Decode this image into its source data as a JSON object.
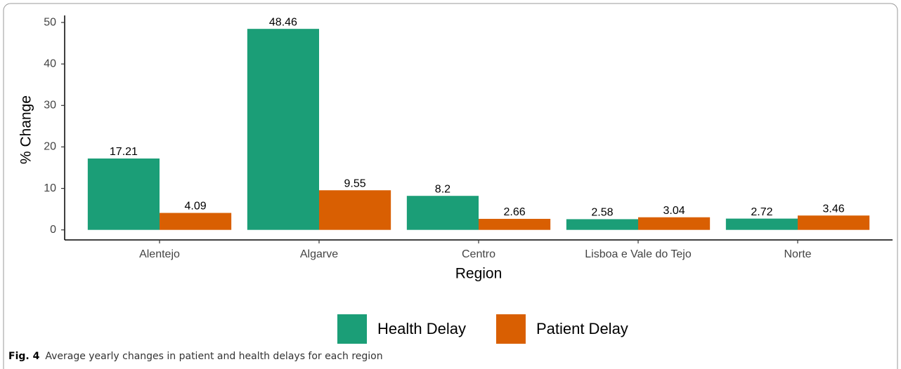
{
  "chart_data": {
    "type": "bar",
    "xlabel": "Region",
    "ylabel": "% Change",
    "categories": [
      "Alentejo",
      "Algarve",
      "Centro",
      "Lisboa e Vale do Tejo",
      "Norte"
    ],
    "series": [
      {
        "name": "Health Delay",
        "color": "#1b9e77",
        "values": [
          17.21,
          48.46,
          8.2,
          2.58,
          2.72
        ]
      },
      {
        "name": "Patient Delay",
        "color": "#d95f02",
        "values": [
          4.09,
          9.55,
          2.66,
          3.04,
          3.46
        ]
      }
    ],
    "ylim": [
      -2.42,
      51.7
    ],
    "yticks": [
      0,
      10,
      20,
      30,
      40,
      50
    ],
    "grid": false,
    "legend": "bottom"
  },
  "caption": {
    "label": "Fig. 4",
    "text": "Average yearly changes in patient and health delays for each region"
  }
}
